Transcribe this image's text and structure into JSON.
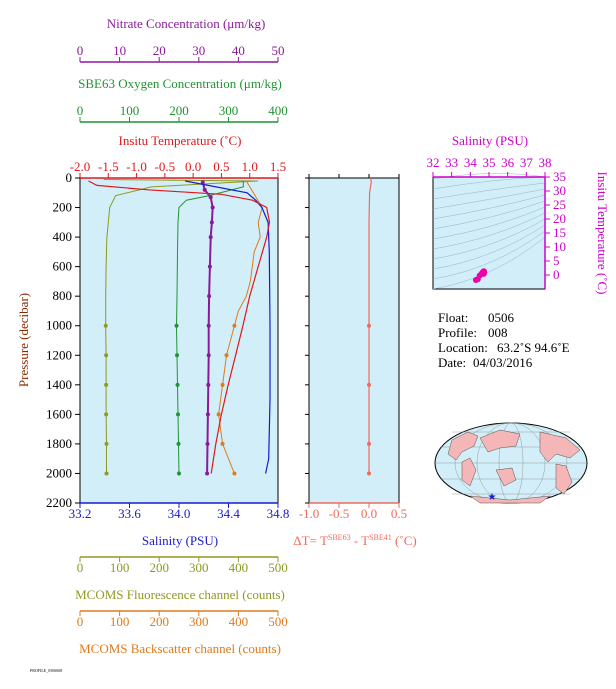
{
  "colors": {
    "nitrate": "#8b1a9b",
    "oxygen": "#1f9433",
    "temperature": "#e0181c",
    "salinity": "#1a1ad0",
    "delta_t": "#f06a5e",
    "fluorescence": "#8f9a1e",
    "backscatter": "#e07a1a",
    "ts_axis": "#cc00cc",
    "panel_bg": "#d2eef8",
    "land": "#f4b6b6"
  },
  "labels": {
    "nitrate_axis": "Nitrate Concentration (μm/kg)",
    "oxygen_axis": "SBE63 Oxygen Concentration (μm/kg)",
    "temp_axis": "Insitu Temperature (˚C)",
    "pressure_axis": "Pressure (decibar)",
    "salinity_axis": "Salinity (PSU)",
    "dt_axis_prefix": "ΔT= T",
    "dt_axis_sup1": "SBE63",
    "dt_axis_mid": " - T",
    "dt_axis_sup2": "SBE41",
    "dt_axis_suffix": " (˚C)",
    "fluor_axis": "MCOMS Fluorescence channel (counts)",
    "backscatter_axis": "MCOMS Backscatter channel (counts)",
    "ts_salinity_axis": "Salinity (PSU)",
    "ts_temp_axis": "Insitu Temperature (˚C)"
  },
  "info": {
    "float_label": "Float:",
    "float_value": "0506",
    "profile_label": "Profile:",
    "profile_value": "008",
    "location_label": "Location:",
    "location_value": "63.2˚S 94.6˚E",
    "date_label": "Date:",
    "date_value": "04/03/2016"
  },
  "footer_text": "PROFILE_0506008",
  "chart_data": [
    {
      "type": "line",
      "panel": "main-profile",
      "yaxis": {
        "label": "Pressure (decibar)",
        "lim": [
          2200,
          0
        ],
        "ticks": [
          0,
          200,
          400,
          600,
          800,
          1000,
          1200,
          1400,
          1600,
          1800,
          2000,
          2200
        ]
      },
      "axes": {
        "nitrate": {
          "lim": [
            0,
            50
          ],
          "ticks": [
            0,
            10,
            20,
            30,
            40,
            50
          ]
        },
        "oxygen": {
          "lim": [
            0,
            400
          ],
          "ticks": [
            0,
            100,
            200,
            300,
            400
          ]
        },
        "temperature": {
          "lim": [
            -2.0,
            1.5
          ],
          "ticks": [
            "-2.0",
            "-1.5",
            "-1.0",
            "-0.5",
            "0.0",
            "0.5",
            "1.0",
            "1.5"
          ]
        },
        "salinity": {
          "lim": [
            33.2,
            34.8
          ],
          "ticks": [
            "33.2",
            "33.6",
            "34.0",
            "34.4",
            "34.8"
          ]
        },
        "fluorescence": {
          "lim": [
            0,
            500
          ],
          "ticks": [
            0,
            100,
            200,
            300,
            400,
            500
          ]
        },
        "backscatter": {
          "lim": [
            0,
            500
          ],
          "ticks": [
            0,
            100,
            200,
            300,
            400,
            500
          ]
        }
      },
      "series": {
        "temperature": [
          [
            -1.85,
            20
          ],
          [
            -1.7,
            50
          ],
          [
            -0.8,
            80
          ],
          [
            0.5,
            110
          ],
          [
            1.05,
            150
          ],
          [
            1.3,
            200
          ],
          [
            1.35,
            300
          ],
          [
            1.3,
            400
          ],
          [
            1.15,
            600
          ],
          [
            1.0,
            800
          ],
          [
            0.88,
            1000
          ],
          [
            0.75,
            1200
          ],
          [
            0.62,
            1400
          ],
          [
            0.5,
            1600
          ],
          [
            0.4,
            1800
          ],
          [
            0.32,
            2000
          ]
        ],
        "salinity": [
          [
            34.05,
            20
          ],
          [
            34.3,
            60
          ],
          [
            34.55,
            100
          ],
          [
            34.62,
            150
          ],
          [
            34.67,
            200
          ],
          [
            34.72,
            300
          ],
          [
            34.73,
            500
          ],
          [
            34.735,
            1000
          ],
          [
            34.735,
            1500
          ],
          [
            34.725,
            1900
          ],
          [
            34.7,
            2000
          ]
        ],
        "nitrate": [
          [
            31.0,
            30
          ],
          [
            31.5,
            80
          ],
          [
            33.0,
            130
          ],
          [
            33.5,
            200
          ],
          [
            33.3,
            300
          ],
          [
            33.0,
            400
          ],
          [
            32.8,
            600
          ],
          [
            32.6,
            800
          ],
          [
            32.5,
            1000
          ],
          [
            32.5,
            1200
          ],
          [
            32.4,
            1400
          ],
          [
            32.3,
            1600
          ],
          [
            32.2,
            1800
          ],
          [
            32.1,
            2000
          ]
        ],
        "oxygen": [
          [
            330,
            20
          ],
          [
            330,
            60
          ],
          [
            260,
            120
          ],
          [
            215,
            150
          ],
          [
            200,
            200
          ],
          [
            198,
            300
          ],
          [
            197,
            500
          ],
          [
            196,
            800
          ],
          [
            195,
            1000
          ],
          [
            196,
            1200
          ],
          [
            197,
            1400
          ],
          [
            198,
            1600
          ],
          [
            199,
            1800
          ],
          [
            200,
            2000
          ]
        ],
        "fluorescence": [
          [
            60,
            10
          ],
          [
            450,
            20
          ],
          [
            180,
            60
          ],
          [
            90,
            120
          ],
          [
            75,
            200
          ],
          [
            68,
            400
          ],
          [
            66,
            600
          ],
          [
            65,
            800
          ],
          [
            65,
            1000
          ],
          [
            66,
            1200
          ],
          [
            66,
            1400
          ],
          [
            66,
            1600
          ],
          [
            67,
            1800
          ],
          [
            67,
            2000
          ]
        ],
        "backscatter": [
          [
            420,
            20
          ],
          [
            460,
            200
          ],
          [
            450,
            300
          ],
          [
            455,
            400
          ],
          [
            440,
            500
          ],
          [
            435,
            600
          ],
          [
            430,
            700
          ],
          [
            420,
            800
          ],
          [
            400,
            900
          ],
          [
            390,
            1000
          ],
          [
            370,
            1200
          ],
          [
            360,
            1400
          ],
          [
            350,
            1600
          ],
          [
            360,
            1800
          ],
          [
            390,
            2000
          ]
        ]
      }
    },
    {
      "type": "line",
      "panel": "delta-t",
      "xaxis": {
        "lim": [
          -1.0,
          0.5
        ],
        "ticks": [
          "-1.0",
          "-0.5",
          "0.0",
          "0.5"
        ]
      },
      "yaxis": {
        "lim": [
          2200,
          0
        ]
      },
      "series": {
        "delta_t": [
          [
            0.02,
            0
          ],
          [
            0.04,
            20
          ],
          [
            0.01,
            100
          ],
          [
            0.0,
            300
          ],
          [
            0.0,
            600
          ],
          [
            0.0,
            1000
          ],
          [
            0.0,
            1400
          ],
          [
            0.0,
            1800
          ],
          [
            0.0,
            2000
          ]
        ]
      }
    },
    {
      "type": "scatter",
      "panel": "ts-diagram",
      "xaxis": {
        "label": "Salinity (PSU)",
        "lim": [
          32,
          38
        ],
        "ticks": [
          32,
          33,
          34,
          35,
          36,
          37,
          38
        ]
      },
      "yaxis": {
        "label": "Insitu Temperature (˚C)",
        "lim": [
          -5,
          35
        ],
        "ticks": [
          0,
          5,
          10,
          15,
          20,
          25,
          30,
          35
        ]
      },
      "points": [
        [
          34.3,
          -1.8
        ],
        [
          34.4,
          -1.5
        ],
        [
          34.5,
          -0.2
        ],
        [
          34.6,
          0.4
        ],
        [
          34.65,
          0.9
        ],
        [
          34.7,
          1.2
        ],
        [
          34.72,
          1.35
        ],
        [
          34.73,
          1.3
        ],
        [
          34.73,
          1.0
        ],
        [
          34.73,
          0.7
        ],
        [
          34.72,
          0.4
        ]
      ]
    }
  ]
}
